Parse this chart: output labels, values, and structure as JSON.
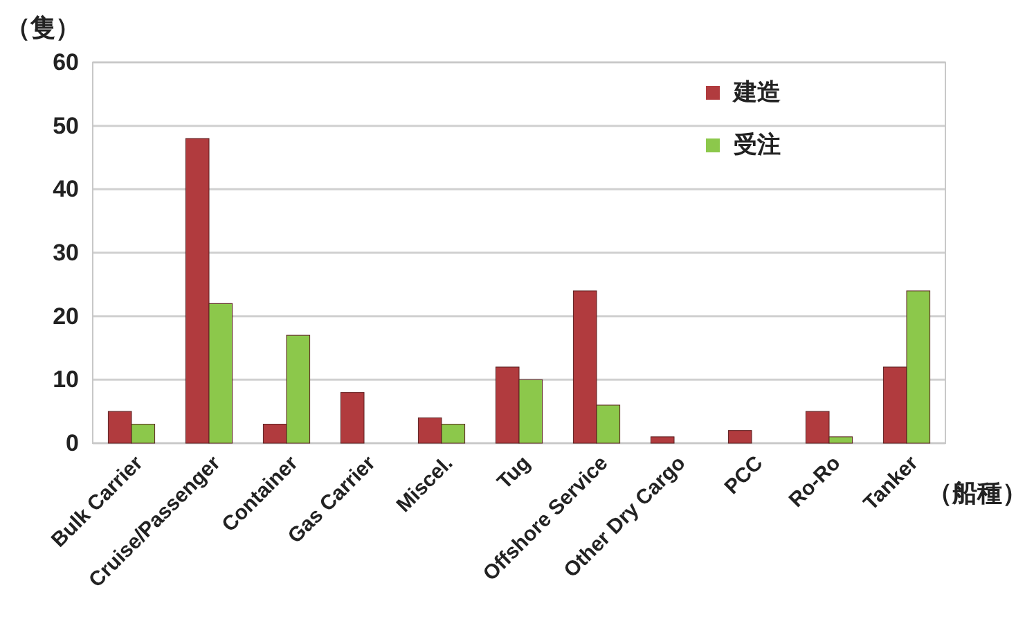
{
  "chart_data": {
    "type": "bar",
    "ylabel": "（隻）",
    "xlabel": "（船種）",
    "categories": [
      "Bulk Carrier",
      "Cruise/Passenger",
      "Container",
      "Gas Carrier",
      "Miscel.",
      "Tug",
      "Offshore Service",
      "Other Dry Cargo",
      "PCC",
      "Ro-Ro",
      "Tanker"
    ],
    "series": [
      {
        "name": "建造",
        "color": "#b13b3e",
        "values": [
          5,
          48,
          3,
          8,
          4,
          12,
          24,
          1,
          2,
          5,
          12
        ]
      },
      {
        "name": "受注",
        "color": "#8cc84b",
        "values": [
          3,
          22,
          17,
          0,
          3,
          10,
          6,
          0,
          0,
          1,
          24
        ]
      }
    ],
    "ylim": [
      0,
      60
    ],
    "yticks": [
      0,
      10,
      20,
      30,
      40,
      50,
      60
    ],
    "grid": "y",
    "legend": "top right"
  }
}
